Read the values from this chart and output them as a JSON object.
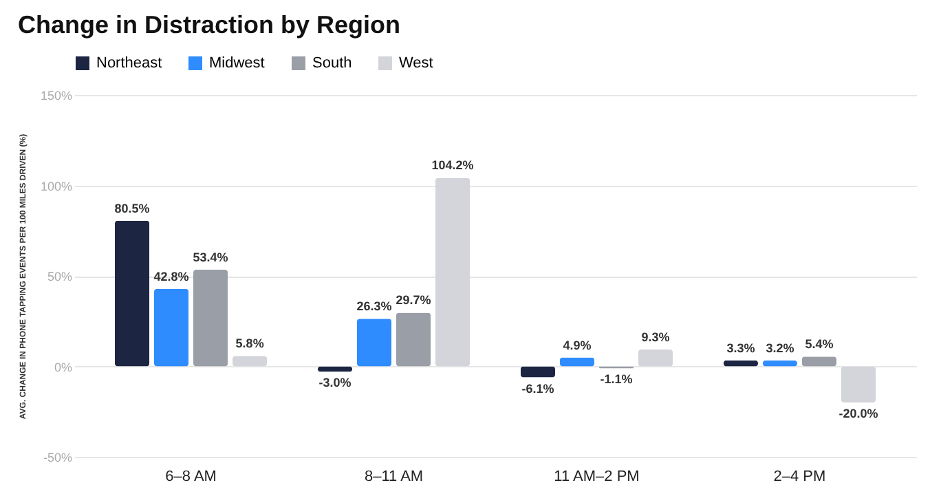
{
  "chart_data": {
    "type": "bar",
    "title": "Change in Distraction by Region",
    "ylabel": "AVG. CHANGE IN PHONE TAPPING EVENTS PER 100 MILES DRIVEN (%)",
    "categories": [
      "6–8 AM",
      "8–11 AM",
      "11 AM–2 PM",
      "2–4 PM"
    ],
    "series": [
      {
        "name": "Northeast",
        "color": "#1c2541",
        "values": [
          80.5,
          -3.0,
          -6.1,
          3.3
        ],
        "value_labels": [
          "80.5%",
          "-3.0%",
          "-6.1%",
          "3.3%"
        ]
      },
      {
        "name": "Midwest",
        "color": "#2f8cff",
        "values": [
          42.8,
          26.3,
          4.9,
          3.2
        ],
        "value_labels": [
          "42.8%",
          "26.3%",
          "4.9%",
          "3.2%"
        ]
      },
      {
        "name": "South",
        "color": "#9a9ea6",
        "values": [
          53.4,
          29.7,
          -1.1,
          5.4
        ],
        "value_labels": [
          "53.4%",
          "29.7%",
          "-1.1%",
          "5.4%"
        ]
      },
      {
        "name": "West",
        "color": "#d3d5da",
        "values": [
          5.8,
          104.2,
          9.3,
          -20.0
        ],
        "value_labels": [
          "5.8%",
          "104.2%",
          "9.3%",
          "-20.0%"
        ]
      }
    ],
    "ylim": [
      -50,
      150
    ],
    "yticks": [
      {
        "value": -50,
        "label": "-50%"
      },
      {
        "value": 0,
        "label": "0%"
      },
      {
        "value": 50,
        "label": "50%"
      },
      {
        "value": 100,
        "label": "100%"
      },
      {
        "value": 150,
        "label": "150%"
      }
    ],
    "grid": "y",
    "legend": "top left"
  }
}
